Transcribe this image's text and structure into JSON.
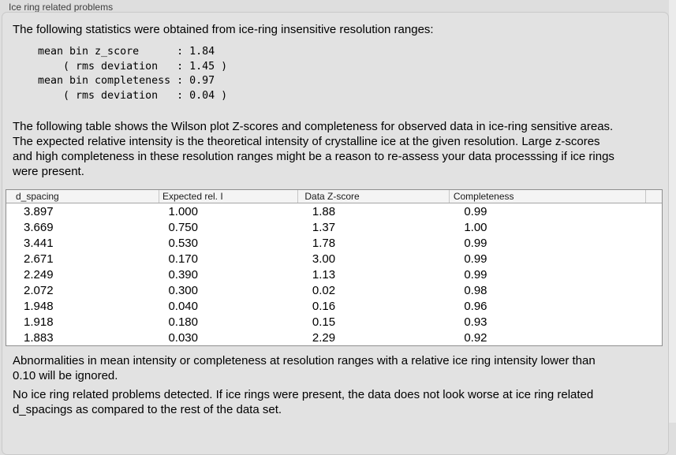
{
  "panel": {
    "title": "Ice ring related problems",
    "intro": "The following statistics were obtained from ice-ring insensitive resolution ranges:",
    "stats_block": "mean bin z_score      : 1.84\n    ( rms deviation   : 1.45 )\nmean bin completeness : 0.97\n    ( rms deviation   : 0.04 )",
    "table_description": "The following table shows the Wilson plot Z-scores and completeness for observed data in ice-ring sensitive areas.\nThe expected relative intensity is the theoretical intensity of crystalline ice at the given resolution. Large z-scores\nand high completeness in these resolution ranges might be a reason to re-assess your data processsing if ice rings\nwere present.",
    "note_ignore": "Abnormalities in mean intensity or completeness at resolution ranges with a relative ice ring intensity lower than\n0.10 will be ignored.",
    "conclusion": "No ice ring related problems detected. If ice rings were present, the data does not look worse at ice ring related\nd_spacings as compared to the rest of the data set."
  },
  "stats": {
    "mean_bin_z_score": "1.84",
    "z_score_rms_deviation": "1.45",
    "mean_bin_completeness": "0.97",
    "completeness_rms_deviation": "0.04"
  },
  "table": {
    "columns": [
      "d_spacing",
      "Expected rel. I",
      "Data Z-score",
      "Completeness"
    ],
    "rows": [
      [
        "3.897",
        "1.000",
        "1.88",
        "0.99"
      ],
      [
        "3.669",
        "0.750",
        "1.37",
        "1.00"
      ],
      [
        "3.441",
        "0.530",
        "1.78",
        "0.99"
      ],
      [
        "2.671",
        "0.170",
        "3.00",
        "0.99"
      ],
      [
        "2.249",
        "0.390",
        "1.13",
        "0.99"
      ],
      [
        "2.072",
        "0.300",
        "0.02",
        "0.98"
      ],
      [
        "1.948",
        "0.040",
        "0.16",
        "0.96"
      ],
      [
        "1.918",
        "0.180",
        "0.15",
        "0.93"
      ],
      [
        "1.883",
        "0.030",
        "2.29",
        "0.92"
      ]
    ]
  },
  "colors": {
    "page_bg": "#dedede",
    "panel_bg": "#e2e2e2",
    "panel_border": "#c9c9c9",
    "table_border": "#8f8f8f",
    "table_header_bg": "#f4f4f4",
    "table_body_bg": "#ffffff"
  }
}
